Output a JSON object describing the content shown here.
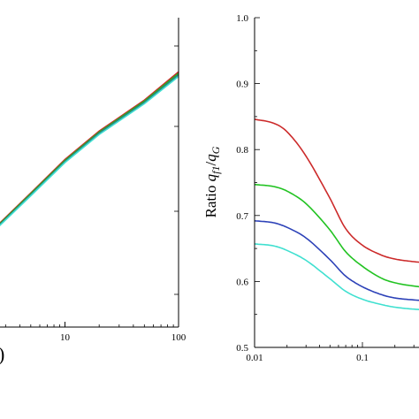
{
  "chart_data": [
    {
      "type": "line",
      "x_scale": "log",
      "xlim": [
        1,
        100
      ],
      "x_tick_labels": [
        "10",
        "100"
      ],
      "x_tick_values": [
        10,
        100
      ],
      "y_tick_labels": [],
      "xlabel_fragment": ")",
      "colors": [
        "#cc2a2a",
        "#22b422",
        "#2a7d8c",
        "#40e0d0"
      ],
      "series": [
        {
          "x": [
            1,
            2,
            5,
            10,
            20,
            50,
            100
          ],
          "y": [
            0.21,
            0.35,
            0.52,
            0.65,
            0.76,
            0.88,
            0.99
          ]
        },
        {
          "x": [
            1,
            2,
            5,
            10,
            20,
            50,
            100
          ],
          "y": [
            0.207,
            0.347,
            0.517,
            0.646,
            0.756,
            0.876,
            0.984
          ]
        },
        {
          "x": [
            1,
            2,
            5,
            10,
            20,
            50,
            100
          ],
          "y": [
            0.204,
            0.344,
            0.513,
            0.642,
            0.752,
            0.871,
            0.978
          ]
        },
        {
          "x": [
            1,
            2,
            5,
            10,
            20,
            50,
            100
          ],
          "y": [
            0.201,
            0.341,
            0.509,
            0.638,
            0.747,
            0.866,
            0.972
          ]
        }
      ]
    },
    {
      "type": "line",
      "x_scale": "log",
      "xlim": [
        0.01,
        0.48
      ],
      "ylim": [
        0.5,
        1.0
      ],
      "x_tick_labels": [
        "0.01",
        "0.1"
      ],
      "x_tick_values": [
        0.01,
        0.1
      ],
      "y_tick_labels": [
        "0.5",
        "0.6",
        "0.7",
        "0.8",
        "0.9",
        "1.0"
      ],
      "y_tick_values": [
        0.5,
        0.6,
        0.7,
        0.8,
        0.9,
        1.0
      ],
      "ylabel_prefix": "Ratio ",
      "ylabel_q": "q",
      "ylabel_sub1": "f1",
      "ylabel_slash": "/",
      "ylabel_sub2": "G",
      "colors": [
        "#cc2a2a",
        "#22c322",
        "#2d42b8",
        "#40e0d0"
      ],
      "series": [
        {
          "x": [
            0.01,
            0.015,
            0.02,
            0.03,
            0.05,
            0.07,
            0.1,
            0.15,
            0.2,
            0.3,
            0.48
          ],
          "y": [
            0.846,
            0.84,
            0.827,
            0.79,
            0.726,
            0.68,
            0.655,
            0.64,
            0.634,
            0.63,
            0.627
          ]
        },
        {
          "x": [
            0.01,
            0.015,
            0.02,
            0.03,
            0.05,
            0.07,
            0.1,
            0.15,
            0.2,
            0.3,
            0.48
          ],
          "y": [
            0.747,
            0.744,
            0.737,
            0.718,
            0.678,
            0.645,
            0.623,
            0.605,
            0.598,
            0.593,
            0.59
          ]
        },
        {
          "x": [
            0.01,
            0.015,
            0.02,
            0.03,
            0.05,
            0.07,
            0.1,
            0.15,
            0.2,
            0.3,
            0.48
          ],
          "y": [
            0.692,
            0.689,
            0.682,
            0.666,
            0.633,
            0.608,
            0.592,
            0.58,
            0.575,
            0.572,
            0.57
          ]
        },
        {
          "x": [
            0.01,
            0.015,
            0.02,
            0.03,
            0.05,
            0.07,
            0.1,
            0.15,
            0.2,
            0.3,
            0.48
          ],
          "y": [
            0.657,
            0.654,
            0.647,
            0.632,
            0.604,
            0.585,
            0.573,
            0.565,
            0.561,
            0.558,
            0.556
          ]
        }
      ]
    }
  ]
}
